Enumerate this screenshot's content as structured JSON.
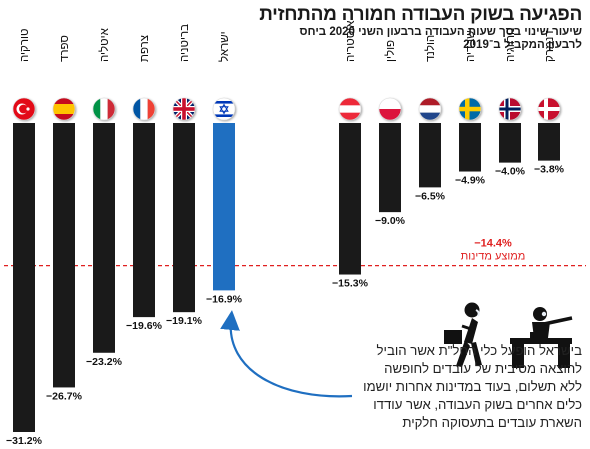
{
  "header": {
    "title": "הפגיעה בשוק העבודה חמורה מהתחזית",
    "subtitle_line1": "שיעור שינוי בסך שעות העבודה ברבעון השני 2020 ביחס",
    "subtitle_line2": "לרבעון המקביל ב־2019"
  },
  "chart_data": {
    "type": "bar",
    "ylim": [
      -31.2,
      0
    ],
    "groups": [
      {
        "name": "left",
        "categories": [
          "טורקיה",
          "ספרד",
          "איטליה",
          "צרפת",
          "בריטניה",
          "ישראל"
        ],
        "values": [
          -31.2,
          -26.7,
          -23.2,
          -19.6,
          -19.1,
          -16.9
        ],
        "value_labels": [
          "−31.2%",
          "−26.7%",
          "−23.2%",
          "−19.6%",
          "−19.1%",
          "−16.9%"
        ],
        "flags": [
          "turkey-flag",
          "spain-flag",
          "italy-flag",
          "france-flag",
          "uk-flag",
          "israel-flag"
        ],
        "highlight": "ישראל"
      },
      {
        "name": "right",
        "categories": [
          "אוסטריה",
          "פולין",
          "הולנד",
          "שבדיה",
          "נורווגיה",
          "דנמרק"
        ],
        "values": [
          -15.3,
          -9.0,
          -6.5,
          -4.9,
          -4.0,
          -3.8
        ],
        "value_labels": [
          "−15.3%",
          "−9.0%",
          "−6.5%",
          "−4.9%",
          "−4.0%",
          "−3.8%"
        ],
        "flags": [
          "austria-flag",
          "poland-flag",
          "netherlands-flag",
          "sweden-flag",
          "norway-flag",
          "denmark-flag"
        ]
      }
    ],
    "average": {
      "value": -14.4,
      "value_label": "−14.4%",
      "label": "ממוצע מדינות"
    },
    "colors": {
      "bar": "#1a1a1a",
      "highlight": "#1f6fc1",
      "average": "#e02020",
      "arrow": "#1f6fc1"
    }
  },
  "annotation": {
    "line1": "בישראל הופעל כלי החל\"ת אשר הוביל",
    "line2": "להוצאה מסיבית של עובדים לחופשה",
    "line3": "ללא תשלום, בעוד במדינות אחרות יושמו",
    "line4": "כלים אחרים בשוק העבודה, אשר עודדו",
    "line5": "השארת עובדים בתעסוקה חלקית"
  },
  "illustration": {
    "icon": "office-workers-illustration"
  }
}
